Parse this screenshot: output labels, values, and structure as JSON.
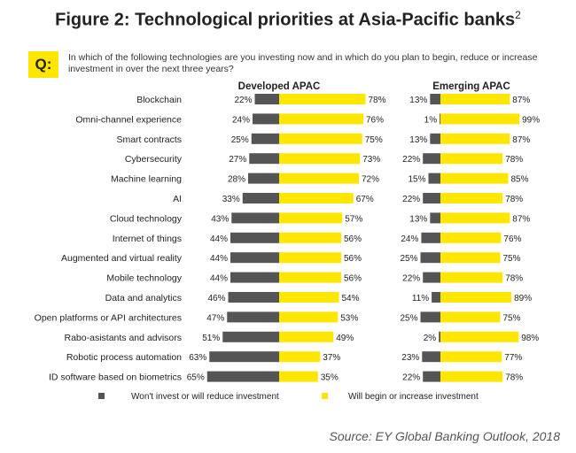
{
  "title": "Figure 2: Technological priorities at Asia-Pacific banks",
  "title_sup": "2",
  "q_label": "Q:",
  "question": "In which of the following technologies are you investing now and in which do you plan to begin, reduce or increase investment in over the next three years?",
  "source": "Source: EY Global Banking Outlook, 2018",
  "colors": {
    "negative": "#555555",
    "positive": "#ffe600",
    "text": "#222222"
  },
  "chart_data": {
    "type": "bar",
    "orientation": "horizontal-diverging",
    "categories": [
      "Blockchain",
      "Omni-channel experience",
      "Smart contracts",
      "Cybersecurity",
      "Machine learning",
      "AI",
      "Cloud technology",
      "Internet of things",
      "Augmented and virtual reality",
      "Mobile technology",
      "Data and analytics",
      "Open platforms or API architectures",
      "Rabo-asistants and advisors",
      "Robotic process automation",
      "ID software based on biometrics"
    ],
    "panels": [
      {
        "name": "Developed APAC",
        "series": [
          {
            "name": "Won't invest or will reduce investment",
            "values": [
              22,
              24,
              25,
              27,
              28,
              33,
              43,
              44,
              44,
              44,
              46,
              47,
              51,
              63,
              65
            ]
          },
          {
            "name": "Will begin or increase investment",
            "values": [
              78,
              76,
              75,
              73,
              72,
              67,
              57,
              56,
              56,
              56,
              54,
              53,
              49,
              37,
              35
            ]
          }
        ]
      },
      {
        "name": "Emerging APAC",
        "series": [
          {
            "name": "Won't invest or will reduce investment",
            "values": [
              13,
              1,
              13,
              22,
              15,
              22,
              13,
              24,
              25,
              22,
              11,
              25,
              2,
              23,
              22
            ]
          },
          {
            "name": "Will begin or increase investment",
            "values": [
              87,
              99,
              87,
              78,
              85,
              78,
              87,
              76,
              75,
              78,
              89,
              75,
              98,
              77,
              78
            ]
          }
        ]
      }
    ],
    "value_suffix": "%",
    "legend": {
      "position": "bottom",
      "items": [
        "Won't invest or will reduce investment",
        "Will begin or increase investment"
      ]
    }
  }
}
